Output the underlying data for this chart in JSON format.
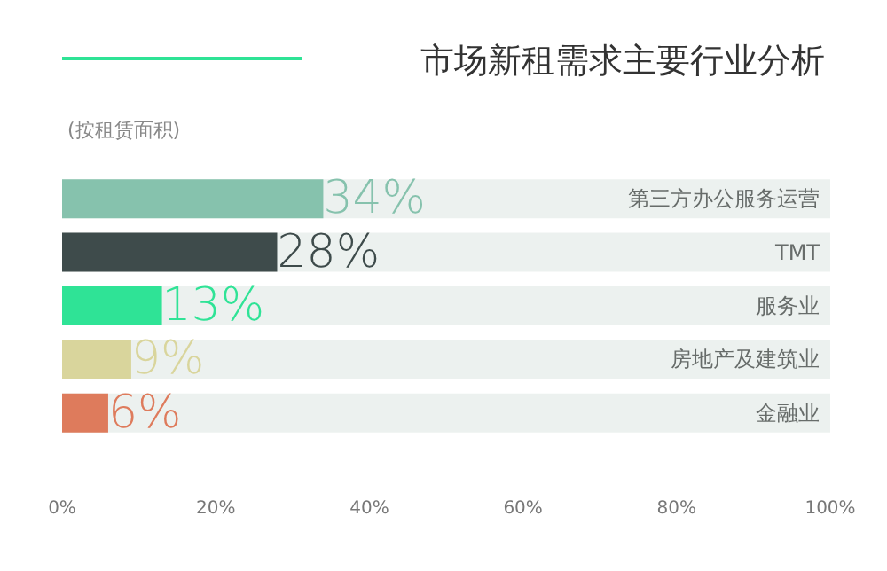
{
  "chart_data": {
    "type": "bar",
    "orientation": "horizontal",
    "title": "市场新租需求主要行业分析",
    "subtitle": "(按租赁面积)",
    "categories": [
      "第三方办公服务运营",
      "TMT",
      "服务业",
      "房地产及建筑业",
      "金融业"
    ],
    "values": [
      34,
      28,
      13,
      9,
      6
    ],
    "colors": [
      "#86c2ad",
      "#3e4b4b",
      "#2fe396",
      "#d9d59c",
      "#de7b5c"
    ],
    "value_labels": [
      "34%",
      "28%",
      "13%",
      "9%",
      "6%"
    ],
    "xlim": [
      0,
      100
    ],
    "xticks": [
      {
        "value": 0,
        "label": "0%"
      },
      {
        "value": 20,
        "label": "20%"
      },
      {
        "value": 40,
        "label": "40%"
      },
      {
        "value": 60,
        "label": "60%"
      },
      {
        "value": 80,
        "label": "80%"
      },
      {
        "value": 100,
        "label": "100%"
      }
    ],
    "grid": false
  }
}
